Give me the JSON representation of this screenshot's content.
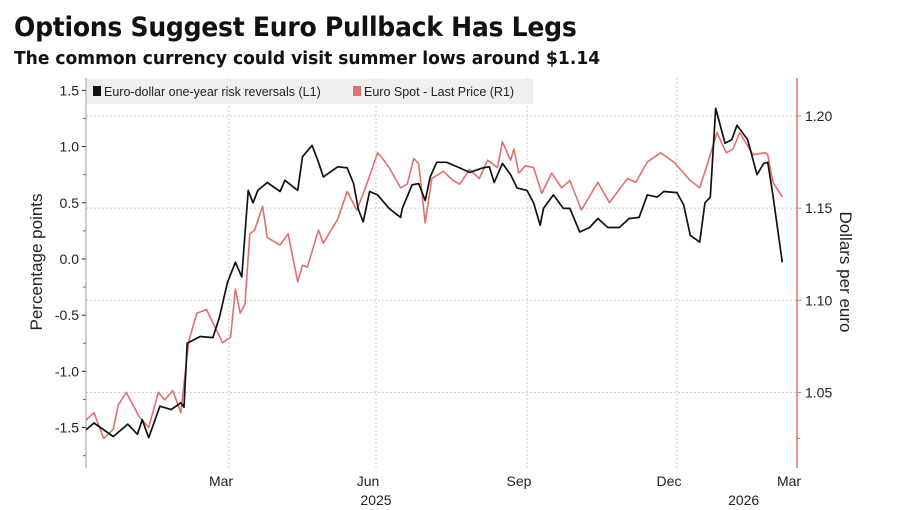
{
  "title": "Options Suggest Euro Pullback Has Legs",
  "subtitle": "The common currency could visit summer lows around $1.14",
  "chart_data": {
    "type": "line",
    "title": "Options Suggest Euro Pullback Has Legs",
    "subtitle": "The common currency could visit summer lows around $1.14",
    "ylabel_left": "Percentage points",
    "ylabel_right": "Dollars per euro",
    "ylim_left": [
      -1.86,
      1.61
    ],
    "ylim_right": [
      1.009,
      1.2206
    ],
    "yticks_left": [
      "1.5",
      "1.0",
      "0.5",
      "0.0",
      "-0.5",
      "-1.0",
      "-1.5"
    ],
    "yticks_right": [
      "1.20",
      "1.15",
      "1.10",
      "1.05"
    ],
    "xlim": [
      "2024-12-02",
      "2026-03-01"
    ],
    "xticks": [
      {
        "date": "2025-03-01",
        "label": "Mar"
      },
      {
        "date": "2025-06-01",
        "label": "Jun"
      },
      {
        "date": "2025-09-01",
        "label": "Sep"
      },
      {
        "date": "2025-12-01",
        "label": "Dec"
      },
      {
        "date": "2026-03-01",
        "label": "Mar"
      }
    ],
    "year_labels": [
      {
        "date": "2025-06-01",
        "label": "2025"
      },
      {
        "date": "2026-01-20",
        "label": "2026"
      }
    ],
    "grid": "dotted",
    "legend_placement": "top-left",
    "colors": {
      "risk_reversals": "#111111",
      "euro_spot": "#e07070",
      "right_axis": "#e07070",
      "legend_bg": "#efefef"
    },
    "series": [
      {
        "name": "Euro-dollar one-year risk reversals (L1)",
        "axis": "left",
        "points": [
          [
            "2024-12-02",
            -1.52
          ],
          [
            "2024-12-07",
            -1.46
          ],
          [
            "2024-12-19",
            -1.58
          ],
          [
            "2024-12-28",
            -1.47
          ],
          [
            "2025-01-03",
            -1.56
          ],
          [
            "2025-01-06",
            -1.43
          ],
          [
            "2025-01-10",
            -1.59
          ],
          [
            "2025-01-17",
            -1.31
          ],
          [
            "2025-01-24",
            -1.34
          ],
          [
            "2025-01-30",
            -1.28
          ],
          [
            "2025-02-01",
            -1.32
          ],
          [
            "2025-02-03",
            -0.75
          ],
          [
            "2025-02-11",
            -0.69
          ],
          [
            "2025-02-19",
            -0.7
          ],
          [
            "2025-02-23",
            -0.52
          ],
          [
            "2025-02-28",
            -0.21
          ],
          [
            "2025-03-05",
            -0.03
          ],
          [
            "2025-03-09",
            -0.16
          ],
          [
            "2025-03-13",
            0.61
          ],
          [
            "2025-03-16",
            0.5
          ],
          [
            "2025-03-19",
            0.61
          ],
          [
            "2025-03-25",
            0.68
          ],
          [
            "2025-04-02",
            0.6
          ],
          [
            "2025-04-05",
            0.7
          ],
          [
            "2025-04-13",
            0.61
          ],
          [
            "2025-04-16",
            0.91
          ],
          [
            "2025-04-22",
            1.01
          ],
          [
            "2025-04-26",
            0.86
          ],
          [
            "2025-04-29",
            0.73
          ],
          [
            "2025-05-08",
            0.82
          ],
          [
            "2025-05-14",
            0.81
          ],
          [
            "2025-05-18",
            0.67
          ],
          [
            "2025-05-21",
            0.44
          ],
          [
            "2025-05-24",
            0.33
          ],
          [
            "2025-05-28",
            0.6
          ],
          [
            "2025-06-02",
            0.57
          ],
          [
            "2025-06-09",
            0.45
          ],
          [
            "2025-06-16",
            0.37
          ],
          [
            "2025-06-17",
            0.45
          ],
          [
            "2025-06-23",
            0.66
          ],
          [
            "2025-06-27",
            0.67
          ],
          [
            "2025-07-01",
            0.52
          ],
          [
            "2025-07-04",
            0.73
          ],
          [
            "2025-07-08",
            0.86
          ],
          [
            "2025-07-14",
            0.86
          ],
          [
            "2025-07-22",
            0.81
          ],
          [
            "2025-07-28",
            0.77
          ],
          [
            "2025-08-05",
            0.81
          ],
          [
            "2025-08-09",
            0.82
          ],
          [
            "2025-08-12",
            0.68
          ],
          [
            "2025-08-17",
            0.85
          ],
          [
            "2025-08-22",
            0.75
          ],
          [
            "2025-08-26",
            0.63
          ],
          [
            "2025-09-01",
            0.61
          ],
          [
            "2025-09-05",
            0.5
          ],
          [
            "2025-09-09",
            0.3
          ],
          [
            "2025-09-11",
            0.45
          ],
          [
            "2025-09-17",
            0.57
          ],
          [
            "2025-09-23",
            0.45
          ],
          [
            "2025-09-27",
            0.45
          ],
          [
            "2025-10-03",
            0.24
          ],
          [
            "2025-10-09",
            0.28
          ],
          [
            "2025-10-14",
            0.36
          ],
          [
            "2025-10-20",
            0.28
          ],
          [
            "2025-10-27",
            0.28
          ],
          [
            "2025-11-02",
            0.36
          ],
          [
            "2025-11-08",
            0.37
          ],
          [
            "2025-11-13",
            0.57
          ],
          [
            "2025-11-19",
            0.55
          ],
          [
            "2025-11-23",
            0.6
          ],
          [
            "2025-12-01",
            0.59
          ],
          [
            "2025-12-06",
            0.48
          ],
          [
            "2025-12-11",
            0.21
          ],
          [
            "2025-12-18",
            0.15
          ],
          [
            "2025-12-22",
            0.5
          ],
          [
            "2025-12-26",
            0.55
          ],
          [
            "2025-12-30",
            1.34
          ],
          [
            "2026-01-06",
            1.03
          ],
          [
            "2026-01-11",
            1.06
          ],
          [
            "2026-01-15",
            1.19
          ],
          [
            "2026-01-23",
            1.06
          ],
          [
            "2026-01-30",
            0.75
          ],
          [
            "2026-02-04",
            0.85
          ],
          [
            "2026-02-07",
            0.86
          ],
          [
            "2026-02-10",
            0.64
          ],
          [
            "2026-02-13",
            0.39
          ],
          [
            "2026-02-18",
            -0.03
          ]
        ]
      },
      {
        "name": "Euro Spot - Last Price (R1)",
        "axis": "right",
        "points": [
          [
            "2024-12-02",
            1.035
          ],
          [
            "2024-12-07",
            1.039
          ],
          [
            "2024-12-13",
            1.025
          ],
          [
            "2024-12-19",
            1.03
          ],
          [
            "2024-12-22",
            1.043
          ],
          [
            "2024-12-27",
            1.05
          ],
          [
            "2025-01-04",
            1.037
          ],
          [
            "2025-01-10",
            1.031
          ],
          [
            "2025-01-16",
            1.05
          ],
          [
            "2025-01-20",
            1.046
          ],
          [
            "2025-01-25",
            1.051
          ],
          [
            "2025-01-30",
            1.039
          ],
          [
            "2025-02-04",
            1.078
          ],
          [
            "2025-02-09",
            1.093
          ],
          [
            "2025-02-15",
            1.095
          ],
          [
            "2025-02-25",
            1.077
          ],
          [
            "2025-03-02",
            1.08
          ],
          [
            "2025-03-05",
            1.106
          ],
          [
            "2025-03-08",
            1.093
          ],
          [
            "2025-03-11",
            1.098
          ],
          [
            "2025-03-14",
            1.136
          ],
          [
            "2025-03-17",
            1.138
          ],
          [
            "2025-03-22",
            1.151
          ],
          [
            "2025-03-25",
            1.134
          ],
          [
            "2025-04-02",
            1.13
          ],
          [
            "2025-04-07",
            1.136
          ],
          [
            "2025-04-13",
            1.11
          ],
          [
            "2025-04-16",
            1.119
          ],
          [
            "2025-04-19",
            1.118
          ],
          [
            "2025-04-26",
            1.138
          ],
          [
            "2025-04-29",
            1.131
          ],
          [
            "2025-05-08",
            1.144
          ],
          [
            "2025-05-14",
            1.159
          ],
          [
            "2025-05-20",
            1.149
          ],
          [
            "2025-05-25",
            1.16
          ],
          [
            "2025-06-02",
            1.18
          ],
          [
            "2025-06-05",
            1.177
          ],
          [
            "2025-06-09",
            1.172
          ],
          [
            "2025-06-16",
            1.161
          ],
          [
            "2025-06-20",
            1.163
          ],
          [
            "2025-06-24",
            1.177
          ],
          [
            "2025-06-27",
            1.174
          ],
          [
            "2025-07-01",
            1.142
          ],
          [
            "2025-07-05",
            1.166
          ],
          [
            "2025-07-12",
            1.17
          ],
          [
            "2025-07-18",
            1.165
          ],
          [
            "2025-07-22",
            1.163
          ],
          [
            "2025-07-28",
            1.171
          ],
          [
            "2025-08-03",
            1.166
          ],
          [
            "2025-08-08",
            1.176
          ],
          [
            "2025-08-14",
            1.172
          ],
          [
            "2025-08-17",
            1.186
          ],
          [
            "2025-08-22",
            1.176
          ],
          [
            "2025-08-24",
            1.182
          ],
          [
            "2025-08-27",
            1.169
          ],
          [
            "2025-08-31",
            1.173
          ],
          [
            "2025-09-05",
            1.172
          ],
          [
            "2025-09-10",
            1.158
          ],
          [
            "2025-09-16",
            1.169
          ],
          [
            "2025-09-22",
            1.161
          ],
          [
            "2025-09-27",
            1.165
          ],
          [
            "2025-10-04",
            1.149
          ],
          [
            "2025-10-14",
            1.164
          ],
          [
            "2025-10-21",
            1.153
          ],
          [
            "2025-11-01",
            1.166
          ],
          [
            "2025-11-06",
            1.164
          ],
          [
            "2025-11-13",
            1.175
          ],
          [
            "2025-11-21",
            1.18
          ],
          [
            "2025-11-29",
            1.175
          ],
          [
            "2025-12-11",
            1.165
          ],
          [
            "2025-12-18",
            1.161
          ],
          [
            "2025-12-23",
            1.172
          ],
          [
            "2025-12-31",
            1.191
          ],
          [
            "2026-01-07",
            1.18
          ],
          [
            "2026-01-12",
            1.182
          ],
          [
            "2026-01-17",
            1.191
          ],
          [
            "2026-01-27",
            1.179
          ],
          [
            "2026-02-05",
            1.18
          ],
          [
            "2026-02-07",
            1.179
          ],
          [
            "2026-02-11",
            1.164
          ],
          [
            "2026-02-18",
            1.156
          ]
        ]
      }
    ]
  }
}
